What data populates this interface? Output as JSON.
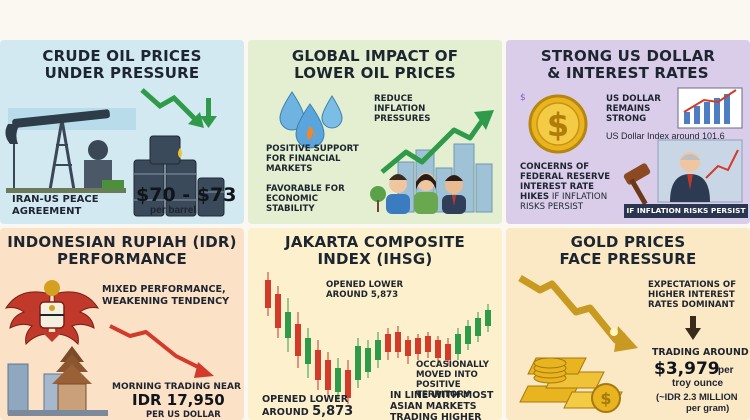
{
  "panels": {
    "crude_oil": {
      "title_line1": "CRUDE OIL PRICES",
      "title_line2": "UNDER PRESSURE",
      "agreement_line1": "IRAN-US PEACE",
      "agreement_line2": "AGREEMENT",
      "price_range": "$70 - $73",
      "price_unit": "per barrel"
    },
    "global_impact": {
      "title_line1": "GLOBAL IMPACT OF",
      "title_line2": "LOWER OIL PRICES",
      "inflation_line1": "REDUCE",
      "inflation_line2": "INFLATION",
      "inflation_line3": "PRESSURES",
      "support_line1": "POSITIVE SUPPORT",
      "support_line2": "FOR FINANCIAL",
      "support_line3": "MARKETS",
      "stability_line1": "FAVORABLE FOR",
      "stability_line2": "ECONOMIC",
      "stability_line3": "STABILITY"
    },
    "us_dollar": {
      "title_line1": "STRONG US DOLLAR",
      "title_line2": "& INTEREST RATES",
      "strong_line1": "US DOLLAR",
      "strong_line2": "REMAINS",
      "strong_line3": "STRONG",
      "index_text": "US Dollar Index around 101.6",
      "fed_line1": "CONCERNS OF",
      "fed_line2": "FEDERAL RESERVE",
      "fed_line3": "INTEREST RATE",
      "fed_line4_bold": "HIKES",
      "fed_line4_rest": " IF INFLATION",
      "fed_line5": "RISKS PERSIST",
      "banner": "IF INFLATION RISKS PERSIST"
    },
    "rupiah": {
      "title_line1": "INDONESIAN RUPIAH (IDR)",
      "title_line2": "PERFORMANCE",
      "mixed_line1": "MIXED PERFORMANCE,",
      "mixed_line2": "WEAKENING TENDENCY",
      "morning_line1": "MORNING TRADING NEAR",
      "rate": "IDR 17,950",
      "rate_unit": "PER US DOLLAR"
    },
    "jci": {
      "title_line1": "JAKARTA COMPOSITE",
      "title_line2": "INDEX (IHSG)",
      "opened_small_line1": "OPENED LOWER",
      "opened_small_line2": "AROUND 5,873",
      "occasional_line1": "OCCASIONALLY",
      "occasional_line2": "MOVED INTO",
      "occasional_line3": "POSITIVE",
      "occasional_line4": "TERRITORY",
      "opened_line1": "OPENED LOWER",
      "opened_line2_prefix": "AROUND ",
      "opened_value": "5,873",
      "asian_line1": "IN LINE WITH MOST",
      "asian_line2": "ASIAN MARKETS",
      "asian_line3": "TRADING HIGHER"
    },
    "gold": {
      "title_line1": "GOLD PRICES",
      "title_line2": "FACE PRESSURE",
      "expect_line1": "EXPECTATIONS OF",
      "expect_line2": "HIGHER INTEREST",
      "expect_line3": "RATES DOMINANT",
      "trading": "TRADING AROUND",
      "price": "$3,979",
      "price_unit": "per",
      "price_unit2": "troy ounce",
      "idr_line1": "(~IDR 2.3 MILLION",
      "idr_line2": "per gram)"
    }
  },
  "colors": {
    "panel_blue": "#d3e9f2",
    "panel_green": "#e3efd0",
    "panel_purple": "#d9cdea",
    "panel_peach": "#fbe1c6",
    "panel_yellow": "#fcf1cc",
    "panel_gold": "#fbe9c6",
    "arrow_green": "#2f9a4a",
    "arrow_red": "#d23a2a",
    "gold": "#e8b420"
  },
  "icons": [
    "oil-pump-icon",
    "oil-barrels-icon",
    "down-arrow-icon",
    "oil-drops-icon",
    "up-trend-arrow-icon",
    "city-skyline-icon",
    "people-icon",
    "dollar-coin-icon",
    "bar-chart-icon",
    "gavel-icon",
    "banker-portrait-icon",
    "garuda-emblem-icon",
    "temple-icon",
    "down-trend-arrow-icon",
    "candlestick-chart-icon",
    "gold-bars-icon",
    "gold-coins-icon"
  ]
}
